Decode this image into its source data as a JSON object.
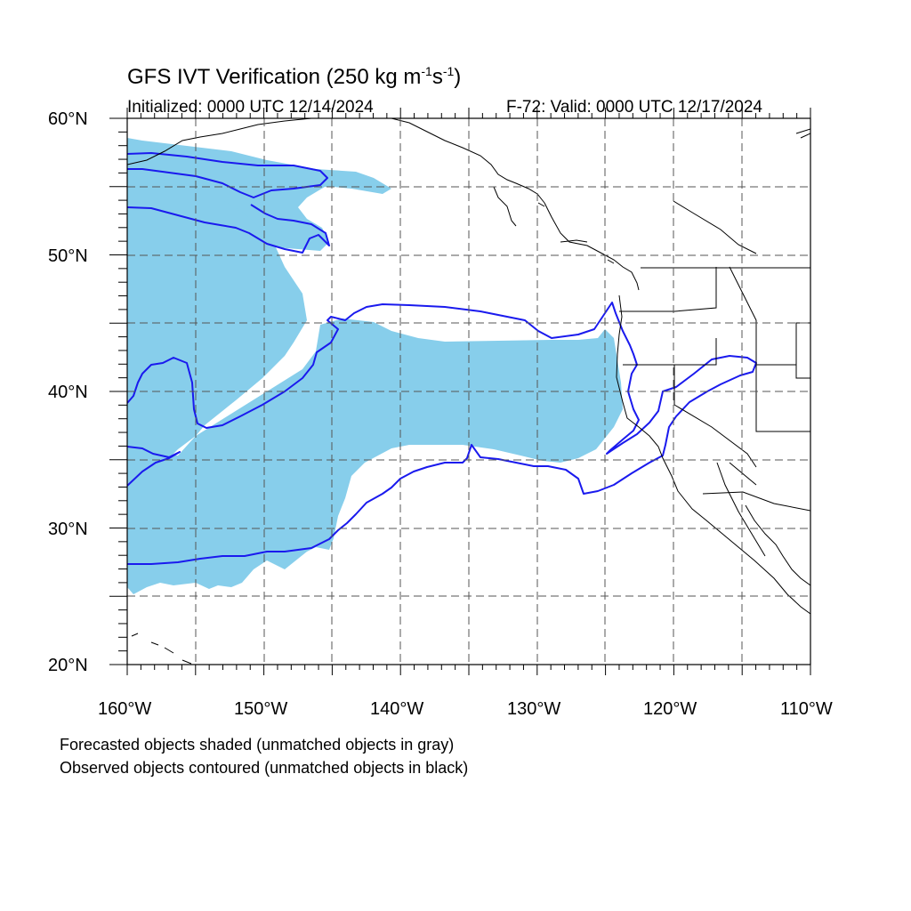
{
  "title": {
    "main": "GFS IVT Verification (250 kg m",
    "sup1": "-1",
    "mid": "s",
    "sup2": "-1",
    "end": ")"
  },
  "initialized": "Initialized: 0000 UTC 12/14/2024",
  "valid": "F-72: Valid: 0000 UTC 12/17/2024",
  "lat_labels": [
    "60°N",
    "50°N",
    "40°N",
    "30°N",
    "20°N"
  ],
  "lon_labels": [
    "160°W",
    "150°W",
    "140°W",
    "130°W",
    "120°W",
    "110°W"
  ],
  "footnotes": [
    "Forecasted objects shaded (unmatched objects in gray)",
    "Observed objects contoured (unmatched objects in black)"
  ],
  "colors": {
    "forecast_fill": "#87ceeb",
    "observed_contour": "#1a1aee",
    "coastline": "#000000",
    "grid": "#555555"
  },
  "map_extent": {
    "lon": [
      -160,
      -110
    ],
    "lat": [
      20,
      60
    ]
  }
}
